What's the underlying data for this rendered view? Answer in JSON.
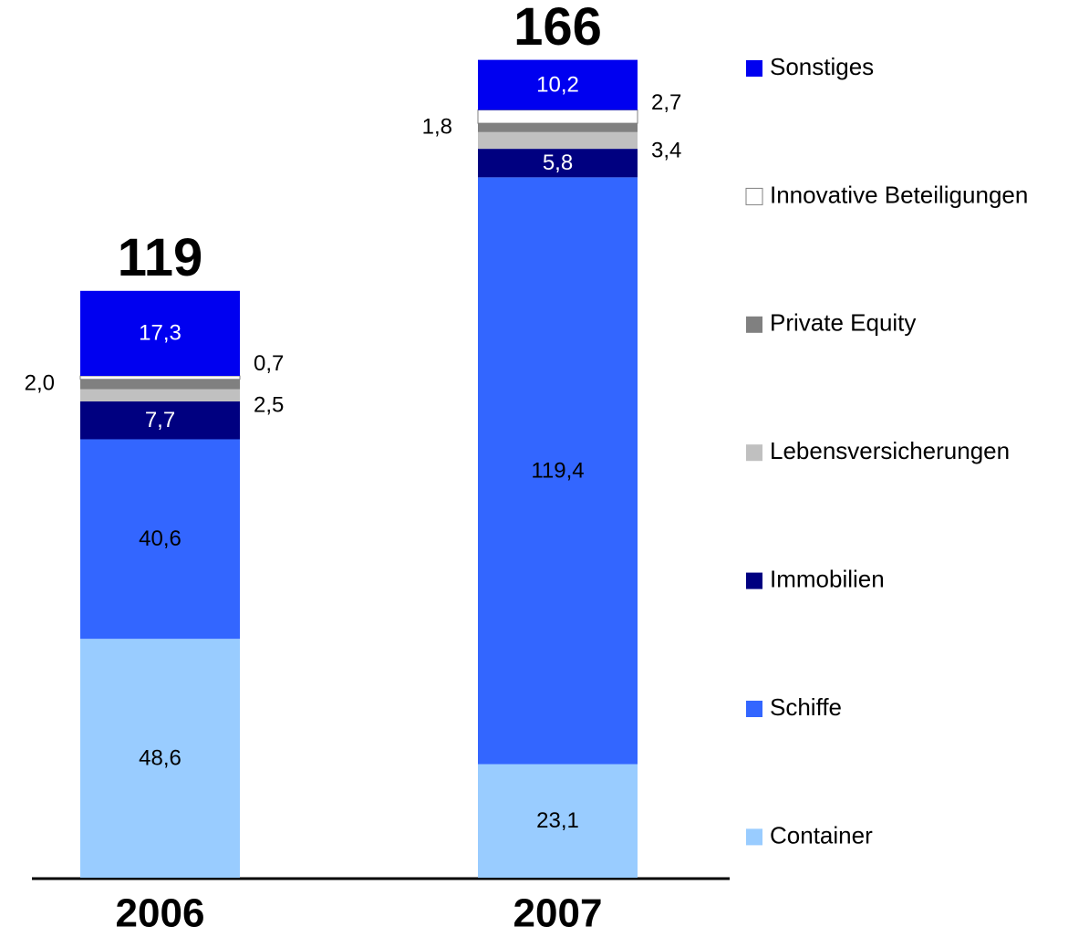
{
  "chart_data": {
    "type": "stacked_bar",
    "categories": [
      "2006",
      "2007"
    ],
    "totals": [
      119,
      166
    ],
    "series": [
      {
        "name": "Container",
        "color": "#99ccff",
        "values": [
          48.6,
          23.1
        ],
        "value_labels": [
          "48,6",
          "23,1"
        ]
      },
      {
        "name": "Schiffe",
        "color": "#3366ff",
        "values": [
          40.6,
          119.4
        ],
        "value_labels": [
          "40,6",
          "119,4"
        ]
      },
      {
        "name": "Immobilien",
        "color": "#000080",
        "values": [
          7.7,
          5.8
        ],
        "value_labels": [
          "7,7",
          "5,8"
        ]
      },
      {
        "name": "Lebensversicherungen",
        "color": "#c0c0c0",
        "values": [
          2.5,
          3.4
        ],
        "value_labels": [
          "2,5",
          "3,4"
        ]
      },
      {
        "name": "Private Equity",
        "color": "#808080",
        "values": [
          2.0,
          1.8
        ],
        "value_labels": [
          "2,0",
          "1,8"
        ]
      },
      {
        "name": "Innovative Beteiligungen",
        "color": "#ffffff",
        "values": [
          0.7,
          2.7
        ],
        "value_labels": [
          "0,7",
          "2,7"
        ]
      },
      {
        "name": "Sonstiges",
        "color": "#0000f0",
        "values": [
          17.3,
          10.2
        ],
        "value_labels": [
          "17,3",
          "10,2"
        ]
      }
    ]
  }
}
